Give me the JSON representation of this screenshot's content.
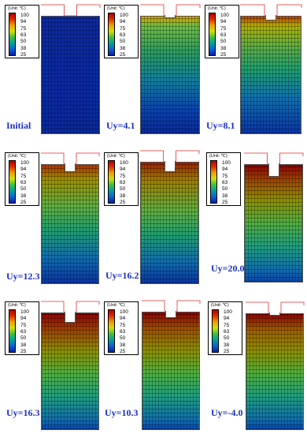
{
  "legend": {
    "unit": "(Unit: ℃)",
    "levels": [
      100,
      94,
      75,
      63,
      50,
      38,
      25
    ]
  },
  "panels": [
    {
      "label": "Initial"
    },
    {
      "label": "Uy=4.1"
    },
    {
      "label": "Uy=8.1"
    },
    {
      "label": "Uy=12.3"
    },
    {
      "label": "Uy=16.2"
    },
    {
      "label": "Uy=20.0"
    },
    {
      "label": "Uy=16.3"
    },
    {
      "label": "Uy=10.3"
    },
    {
      "label": "Uy=-4.0"
    }
  ]
}
